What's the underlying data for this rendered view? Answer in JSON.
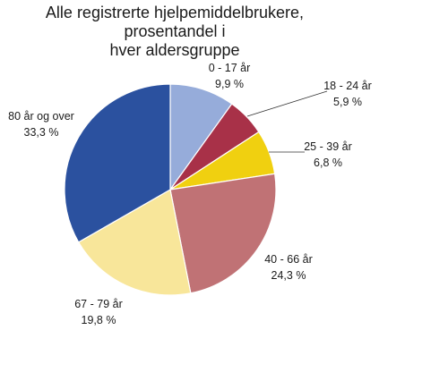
{
  "chart_data": {
    "type": "pie",
    "title": [
      "Alle registrerte hjelpemiddelbrukere, prosentandel i",
      "hver aldersgruppe"
    ],
    "slices": [
      {
        "label": "0 - 17 år",
        "value_text": "9,9 %",
        "value": 9.9,
        "color": "#96acda"
      },
      {
        "label": "18 - 24 år",
        "value_text": "5,9 %",
        "value": 5.9,
        "color": "#a83148"
      },
      {
        "label": "25 - 39 år",
        "value_text": "6,8 %",
        "value": 6.8,
        "color": "#f0d010"
      },
      {
        "label": "40 - 66 år",
        "value_text": "24,3 %",
        "value": 24.3,
        "color": "#c07275"
      },
      {
        "label": "67 - 79 år",
        "value_text": "19,8 %",
        "value": 19.8,
        "color": "#f8e69a"
      },
      {
        "label": "80 år og over",
        "value_text": "33,3 %",
        "value": 33.3,
        "color": "#2b519f"
      }
    ],
    "legend": "none"
  }
}
